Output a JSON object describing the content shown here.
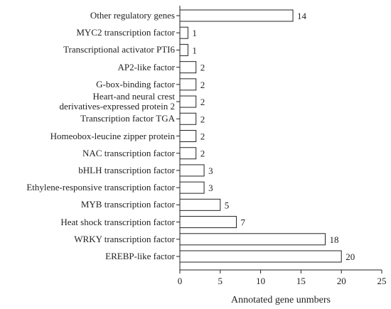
{
  "chart_data": {
    "type": "barh",
    "categories": [
      "Other regulatory genes",
      "MYC2 transcription factor",
      "Transcriptional activator PTI6",
      "AP2-like factor",
      "G-box-binding factor",
      "Heart-and neural crest\nderivatives-expressed protein 2",
      "Transcription factor TGA",
      "Homeobox-leucine zipper protein",
      "NAC transcription factor",
      "bHLH transcription factor",
      "Ethylene-responsive transcription factor",
      "MYB transcription factor",
      "Heat shock transcription factor",
      "WRKY transcription factor",
      "EREBP-like factor"
    ],
    "values": [
      14,
      1,
      1,
      2,
      2,
      2,
      2,
      2,
      2,
      3,
      3,
      5,
      7,
      18,
      20
    ],
    "color": "#ffffff",
    "xlim": [
      0,
      25
    ],
    "xticks": [
      0,
      5,
      10,
      15,
      20,
      25
    ],
    "xlabel": "Annotated gene unmbers"
  }
}
